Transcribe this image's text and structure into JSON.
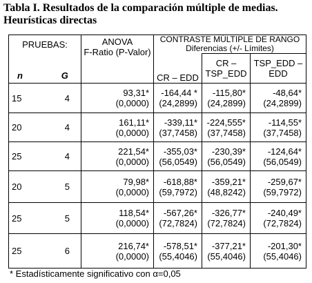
{
  "header": {
    "title_line1": "Tabla I.  Resultados de la comparación múltiple de medias.",
    "title_line2": "Heurísticas directas"
  },
  "table": {
    "group_headers": {
      "pruebas": "PRUEBAS:",
      "anova_line1": "ANOVA",
      "anova_line2": "F-Ratio (P-Valor)",
      "contraste": "CONTRASTE MÚLTIPLE DE RANGO",
      "diferencias": "Diferencias (+/-  Límites)"
    },
    "columns": [
      "n",
      "G",
      "",
      "CR – EDD",
      "CR – TSP_EDD",
      "TSP_EDD – EDD"
    ],
    "rows": [
      [
        "15",
        "4",
        {
          "value": "93,31*",
          "limit": "(0,0000)"
        },
        {
          "value": "-164,44 *",
          "limit": "(24,2899)"
        },
        {
          "value": "-115,80*",
          "limit": "(24,2899)"
        },
        {
          "value": "-48,64*",
          "limit": "(24,2899)"
        }
      ],
      [
        "20",
        "4",
        {
          "value": "161,11*",
          "limit": "(0,0000)"
        },
        {
          "value": "-339,11*",
          "limit": "(37,7458)"
        },
        {
          "value": "-224,555*",
          "limit": "(37,7458)"
        },
        {
          "value": "-114,55*",
          "limit": "(37,7458)"
        }
      ],
      [
        "25",
        "4",
        {
          "value": "221,54*",
          "limit": "(0,0000)"
        },
        {
          "value": "-355,03*",
          "limit": "(56,0549)"
        },
        {
          "value": "-230,39*",
          "limit": "(56,0549)"
        },
        {
          "value": "-124,64*",
          "limit": "(56,0549)"
        }
      ],
      [
        "20",
        "5",
        {
          "value": "79,98*",
          "limit": "(0,0000)"
        },
        {
          "value": "-618,88*",
          "limit": "(59,7972)"
        },
        {
          "value": "-359,21*",
          "limit": "(48,8242)"
        },
        {
          "value": "-259,67*",
          "limit": "(59,7972)"
        }
      ],
      [
        "25",
        "5",
        {
          "value": "118,54*",
          "limit": "(0,0000)"
        },
        {
          "value": "-567,26*",
          "limit": "(72,7824)"
        },
        {
          "value": "-326,77*",
          "limit": "(72,7824)"
        },
        {
          "value": "-240,49*",
          "limit": "(72,7824)"
        }
      ],
      [
        "25",
        "6",
        {
          "value": "216,74*",
          "limit": "(0,0000)"
        },
        {
          "value": "-578,51*",
          "limit": "(55,4046)"
        },
        {
          "value": "-377,21*",
          "limit": "(55,4046)"
        },
        {
          "value": "-201,30*",
          "limit": "(55,4046)"
        }
      ]
    ]
  },
  "footnote": "* Estadísticamente significativo con α=0,05"
}
